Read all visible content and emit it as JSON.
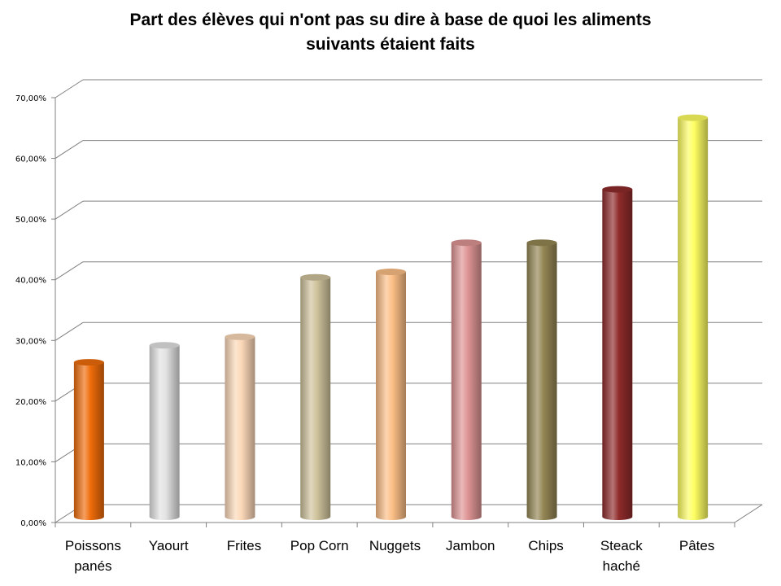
{
  "chart_data": {
    "type": "bar",
    "title": "Part des élèves qui n'ont pas su dire à base de quoi les aliments\nsuivants étaient faits",
    "categories": [
      "Poissons panés",
      "Yaourt",
      "Frites",
      "Pop Corn",
      "Nuggets",
      "Jambon",
      "Chips",
      "Steack haché",
      "Pâtes"
    ],
    "category_lines": [
      [
        "Poissons",
        "panés"
      ],
      [
        "Yaourt"
      ],
      [
        "Frites"
      ],
      [
        "Pop Corn"
      ],
      [
        "Nuggets"
      ],
      [
        "Jambon"
      ],
      [
        "Chips"
      ],
      [
        "Steack",
        "haché"
      ],
      [
        "Pâtes"
      ]
    ],
    "values": [
      24.1,
      26.9,
      28.3,
      38.1,
      39.0,
      43.8,
      43.8,
      52.6,
      64.4
    ],
    "ylim": [
      0,
      70
    ],
    "yticks": [
      0,
      10,
      20,
      30,
      40,
      50,
      60,
      70
    ],
    "ytick_labels": [
      "0,00%",
      "10,00%",
      "20,00%",
      "30,00%",
      "40,00%",
      "50,00%",
      "60,00%",
      "70,00%"
    ],
    "grid": true,
    "colors": [
      "#ef6c0a",
      "#e2e2e2",
      "#fcd8b8",
      "#cfc39c",
      "#fcbf86",
      "#de9494",
      "#948654",
      "#8f2b2b",
      "#fefe62"
    ],
    "xlabel": "",
    "ylabel": ""
  }
}
